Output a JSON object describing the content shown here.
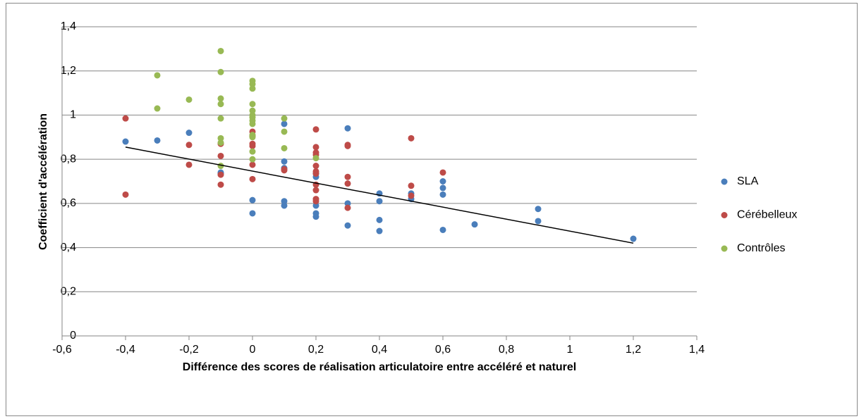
{
  "chart_data": {
    "type": "scatter",
    "x_label": "Différence des scores de réalisation articulatoire entre accéléré et naturel",
    "y_label": "Coefficient d'accélération",
    "xlim": [
      -0.6,
      1.4
    ],
    "ylim": [
      0,
      1.4
    ],
    "xticks": [
      {
        "value": -0.6,
        "label": "-0,6"
      },
      {
        "value": -0.4,
        "label": "-0,4"
      },
      {
        "value": -0.2,
        "label": "-0,2"
      },
      0,
      {
        "value": 0.2,
        "label": "0,2"
      },
      {
        "value": 0.4,
        "label": "0,4"
      },
      {
        "value": 0.6,
        "label": "0,6"
      },
      {
        "value": 0.8,
        "label": "0,8"
      },
      1,
      {
        "value": 1.2,
        "label": "1,2"
      },
      {
        "value": 1.4,
        "label": "1,4"
      }
    ],
    "yticks": [
      0,
      {
        "value": 0.2,
        "label": "0,2"
      },
      {
        "value": 0.4,
        "label": "0,4"
      },
      {
        "value": 0.6,
        "label": "0,6"
      },
      {
        "value": 0.8,
        "label": "0,8"
      },
      1,
      {
        "value": 1.2,
        "label": "1,2"
      },
      {
        "value": 1.4,
        "label": "1,4"
      }
    ],
    "grid": true,
    "legend": "right",
    "series": [
      {
        "name": "SLA",
        "color": "#4a7ebb",
        "x": [
          -0.4,
          -0.3,
          -0.2,
          -0.1,
          -0.1,
          0,
          0,
          0.1,
          0.1,
          0.1,
          0.1,
          0.1,
          0.2,
          0.2,
          0.2,
          0.2,
          0.2,
          0.3,
          0.3,
          0.3,
          0.4,
          0.4,
          0.4,
          0.4,
          0.5,
          0.5,
          0.6,
          0.6,
          0.6,
          0.6,
          0.7,
          0.9,
          0.9,
          1.2
        ],
        "y": [
          0.88,
          0.885,
          0.92,
          0.74,
          0.735,
          0.615,
          0.555,
          0.96,
          0.79,
          0.76,
          0.61,
          0.59,
          0.735,
          0.72,
          0.59,
          0.555,
          0.54,
          0.94,
          0.6,
          0.5,
          0.645,
          0.61,
          0.525,
          0.475,
          0.645,
          0.62,
          0.7,
          0.67,
          0.64,
          0.48,
          0.505,
          0.575,
          0.52,
          0.44
        ]
      },
      {
        "name": "Cérébelleux",
        "color": "#be4b48",
        "x": [
          -0.4,
          -0.4,
          -0.2,
          -0.2,
          -0.1,
          -0.1,
          -0.1,
          -0.1,
          0,
          0,
          0,
          0,
          0,
          0,
          0.1,
          0.1,
          0.2,
          0.2,
          0.2,
          0.2,
          0.2,
          0.2,
          0.2,
          0.2,
          0.2,
          0.2,
          0.2,
          0.3,
          0.3,
          0.3,
          0.3,
          0.3,
          0.5,
          0.5,
          0.5,
          0.6
        ],
        "y": [
          0.985,
          0.64,
          0.865,
          0.775,
          0.87,
          0.815,
          0.73,
          0.685,
          0.925,
          0.905,
          0.87,
          0.86,
          0.775,
          0.71,
          0.755,
          0.75,
          0.935,
          0.855,
          0.83,
          0.82,
          0.77,
          0.745,
          0.735,
          0.685,
          0.66,
          0.62,
          0.61,
          0.865,
          0.86,
          0.72,
          0.69,
          0.58,
          0.895,
          0.68,
          0.635,
          0.74
        ]
      },
      {
        "name": "Contrôles",
        "color": "#98b954",
        "x": [
          -0.3,
          -0.3,
          -0.2,
          -0.1,
          -0.1,
          -0.1,
          -0.1,
          -0.1,
          -0.1,
          -0.1,
          -0.1,
          0,
          0,
          0,
          0,
          0,
          0,
          0,
          0,
          0,
          0,
          0,
          0,
          0,
          0.1,
          0.1,
          0.1,
          0.2
        ],
        "y": [
          1.18,
          1.03,
          1.07,
          1.29,
          1.195,
          1.075,
          1.05,
          0.985,
          0.895,
          0.875,
          0.77,
          1.155,
          1.14,
          1.12,
          1.05,
          1.02,
          1.0,
          0.99,
          0.975,
          0.96,
          0.91,
          0.9,
          0.835,
          0.8,
          0.985,
          0.925,
          0.85,
          0.805
        ]
      }
    ],
    "trendline": {
      "color": "#000000",
      "x": [
        -0.4,
        1.2
      ],
      "y": [
        0.855,
        0.42
      ]
    }
  }
}
